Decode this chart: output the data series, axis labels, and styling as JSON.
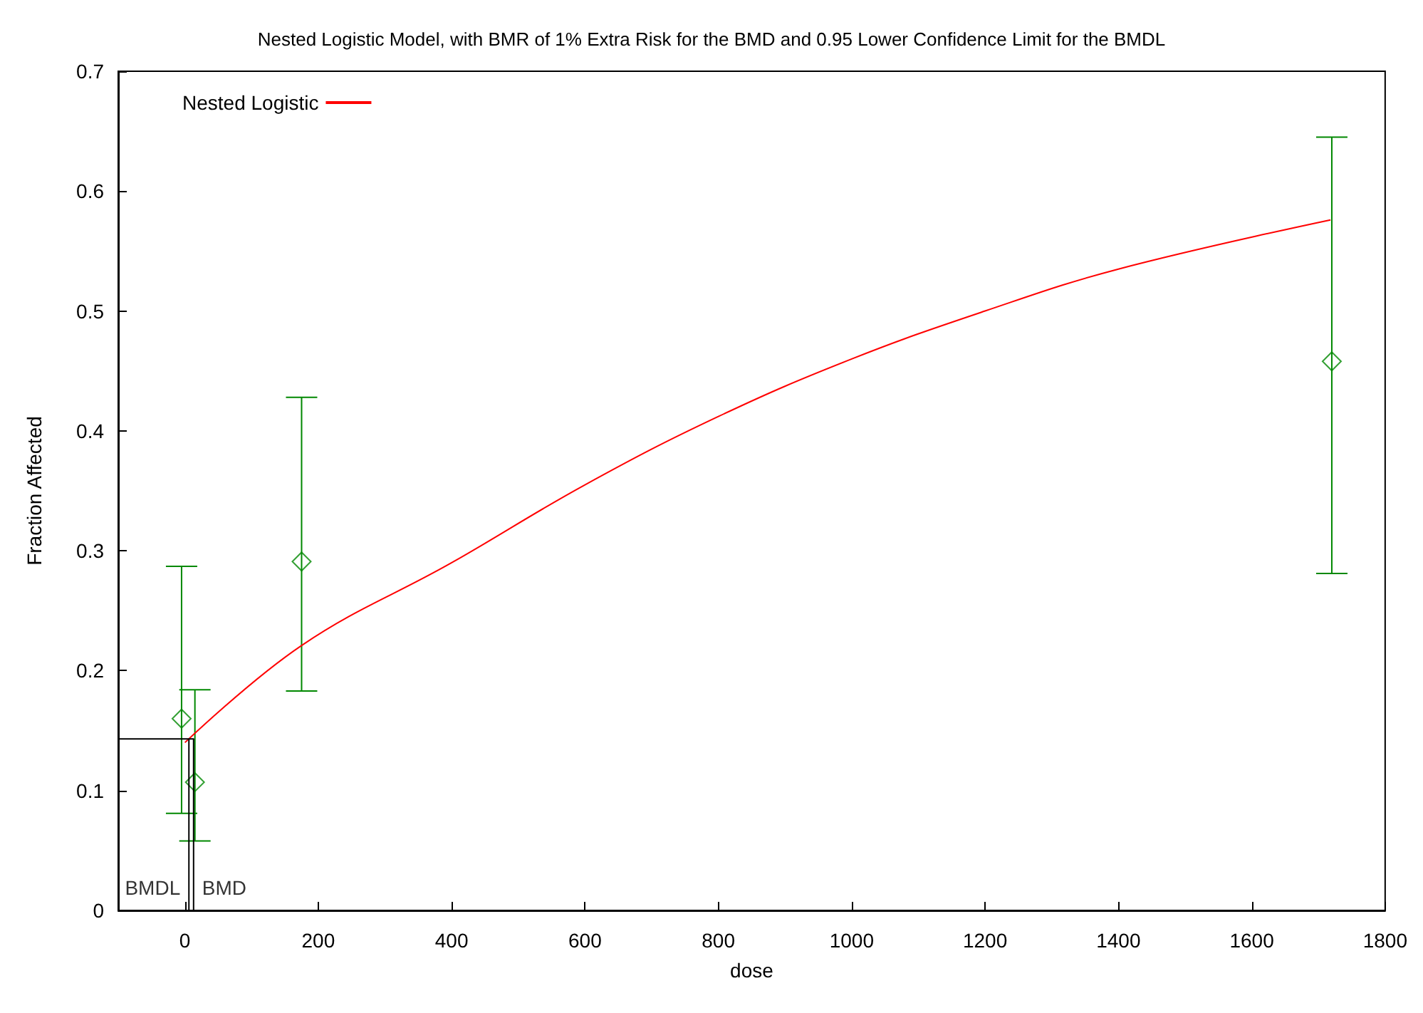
{
  "chart_data": {
    "type": "scatter",
    "title": "Nested Logistic Model, with BMR of 1% Extra Risk for the BMD and 0.95 Lower Confidence Limit for the BMDL",
    "xlabel": "dose",
    "ylabel": "Fraction Affected",
    "xlim": [
      -100,
      1800
    ],
    "xticks": [
      0,
      200,
      400,
      600,
      800,
      1000,
      1200,
      1400,
      1600,
      1800
    ],
    "ylim": [
      0,
      0.7
    ],
    "yticks": [
      0,
      0.1,
      0.2,
      0.3,
      0.4,
      0.5,
      0.6,
      0.7
    ],
    "grid": false,
    "legend": "top left",
    "series": [
      {
        "color": "#008800",
        "marker": "diamond",
        "x": [
          -5,
          15,
          175,
          1720
        ],
        "values": [
          0.16,
          0.107,
          0.291,
          0.458
        ],
        "errors": [
          [
            0.081,
            0.287
          ],
          [
            0.058,
            0.184
          ],
          [
            0.183,
            0.428
          ],
          [
            0.281,
            0.645
          ]
        ]
      },
      {
        "type": "line",
        "name": "Nested Logistic",
        "color": "#ff0000",
        "x": [
          0,
          175,
          400,
          600,
          800,
          1000,
          1200,
          1400,
          1718
        ],
        "values": [
          0.14,
          0.221,
          0.29,
          0.355,
          0.412,
          0.46,
          0.5,
          0.535,
          0.576
        ]
      },
      {
        "type": "line",
        "color": "#000000",
        "x": [
          -100,
          13,
          13
        ],
        "values": [
          0.143,
          0.143,
          0
        ]
      },
      {
        "type": "line",
        "color": "#000000",
        "x": [
          6,
          6
        ],
        "values": [
          0.143,
          0
        ]
      }
    ],
    "annotations": [
      {
        "text": "BMDL",
        "x": 6,
        "y": 0
      },
      {
        "text": "BMD",
        "x": 13,
        "y": 0
      }
    ]
  }
}
